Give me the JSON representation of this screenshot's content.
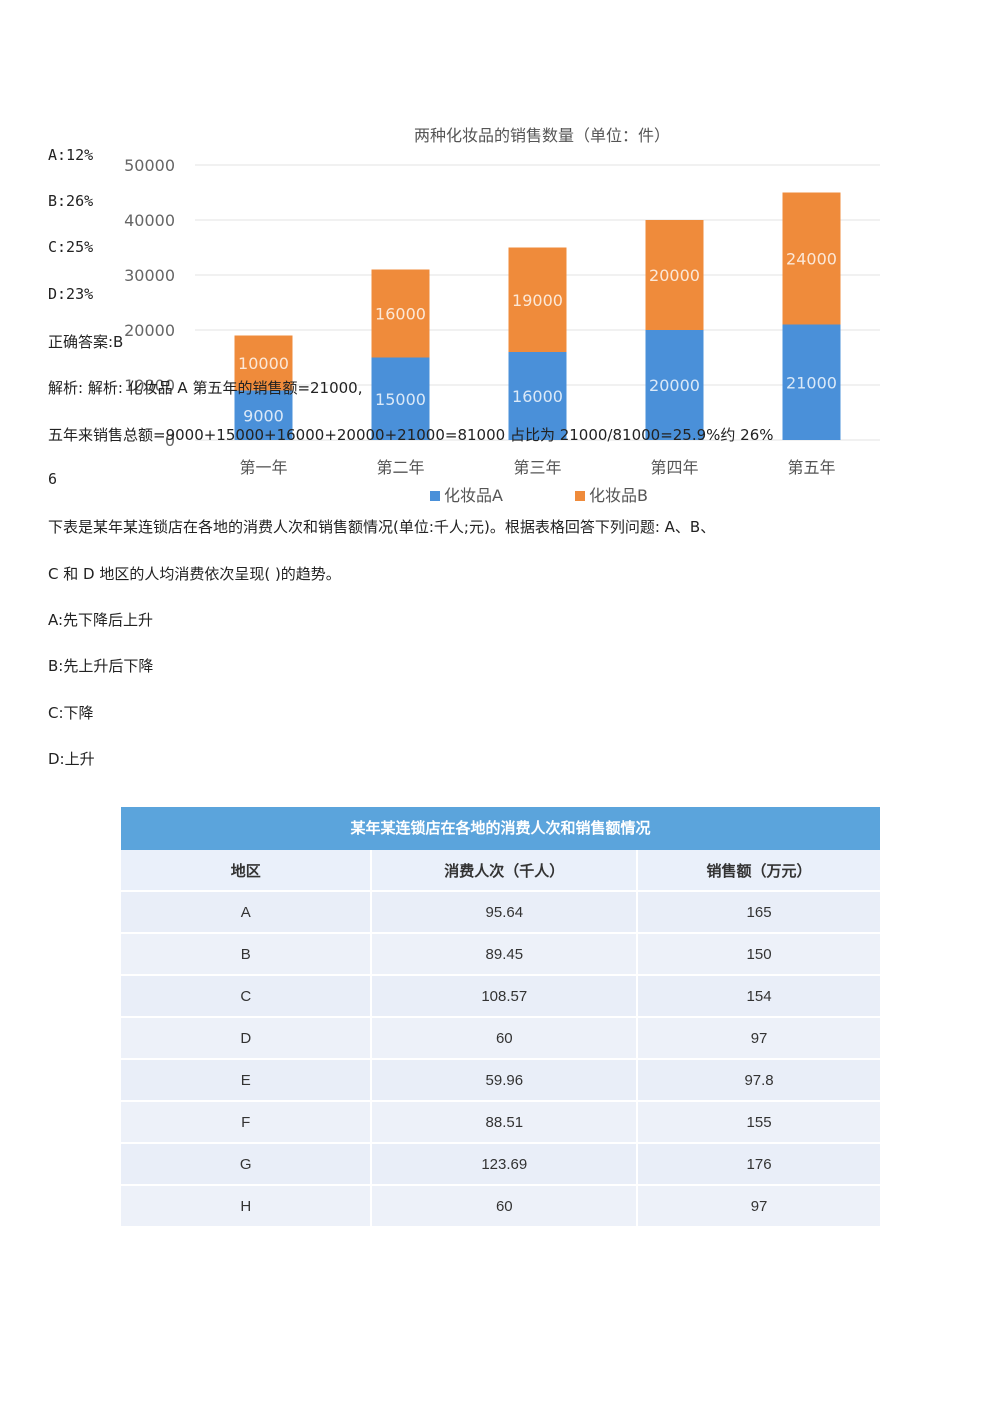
{
  "chart_data": {
    "type": "bar",
    "stacked": true,
    "title": "两种化妆品的销售数量（单位：件）",
    "categories": [
      "第一年",
      "第二年",
      "第三年",
      "第四年",
      "第五年"
    ],
    "series": [
      {
        "name": "化妆品A",
        "values": [
          9000,
          15000,
          16000,
          20000,
          21000
        ],
        "color": "#4a90d9"
      },
      {
        "name": "化妆品B",
        "values": [
          10000,
          16000,
          19000,
          20000,
          24000
        ],
        "color": "#ef8b3b"
      }
    ],
    "ylim": [
      0,
      50000
    ],
    "yticks": [
      0,
      10000,
      20000,
      30000,
      40000,
      50000
    ],
    "ytick_labels": [
      "0",
      "10000",
      "20000",
      "30000",
      "40000",
      "50000"
    ],
    "grid": true,
    "legend": "bottom"
  },
  "question5": {
    "options": [
      "A:12%",
      "B:26%",
      "C:25%",
      "D:23%"
    ],
    "answer": "正确答案:B",
    "analysis_1": "解析: 解析: 化妆品 A 第五年的销售额=21000,",
    "analysis_2": "五年来销售总额=9000+15000+16000+20000+21000=81000 占比为 21000/81000=25.9%约 26%"
  },
  "question6": {
    "number": "6",
    "stem_1": "下表是某年某连锁店在各地的消费人次和销售额情况(单位:千人;元)。根据表格回答下列问题: A、B、",
    "stem_2": "C 和 D 地区的人均消费依次呈现( )的趋势。",
    "options": [
      "A:先下降后上升",
      "B:先上升后下降",
      "C:下降",
      "D:上升"
    ]
  },
  "table": {
    "title": "某年某连锁店在各地的消费人次和销售额情况",
    "headers": [
      "地区",
      "消费人次（千人）",
      "销售额（万元）"
    ],
    "rows": [
      [
        "A",
        "95.64",
        "165"
      ],
      [
        "B",
        "89.45",
        "150"
      ],
      [
        "C",
        "108.57",
        "154"
      ],
      [
        "D",
        "60",
        "97"
      ],
      [
        "E",
        "59.96",
        "97.8"
      ],
      [
        "F",
        "88.51",
        "155"
      ],
      [
        "G",
        "123.69",
        "176"
      ],
      [
        "H",
        "60",
        "97"
      ]
    ]
  }
}
